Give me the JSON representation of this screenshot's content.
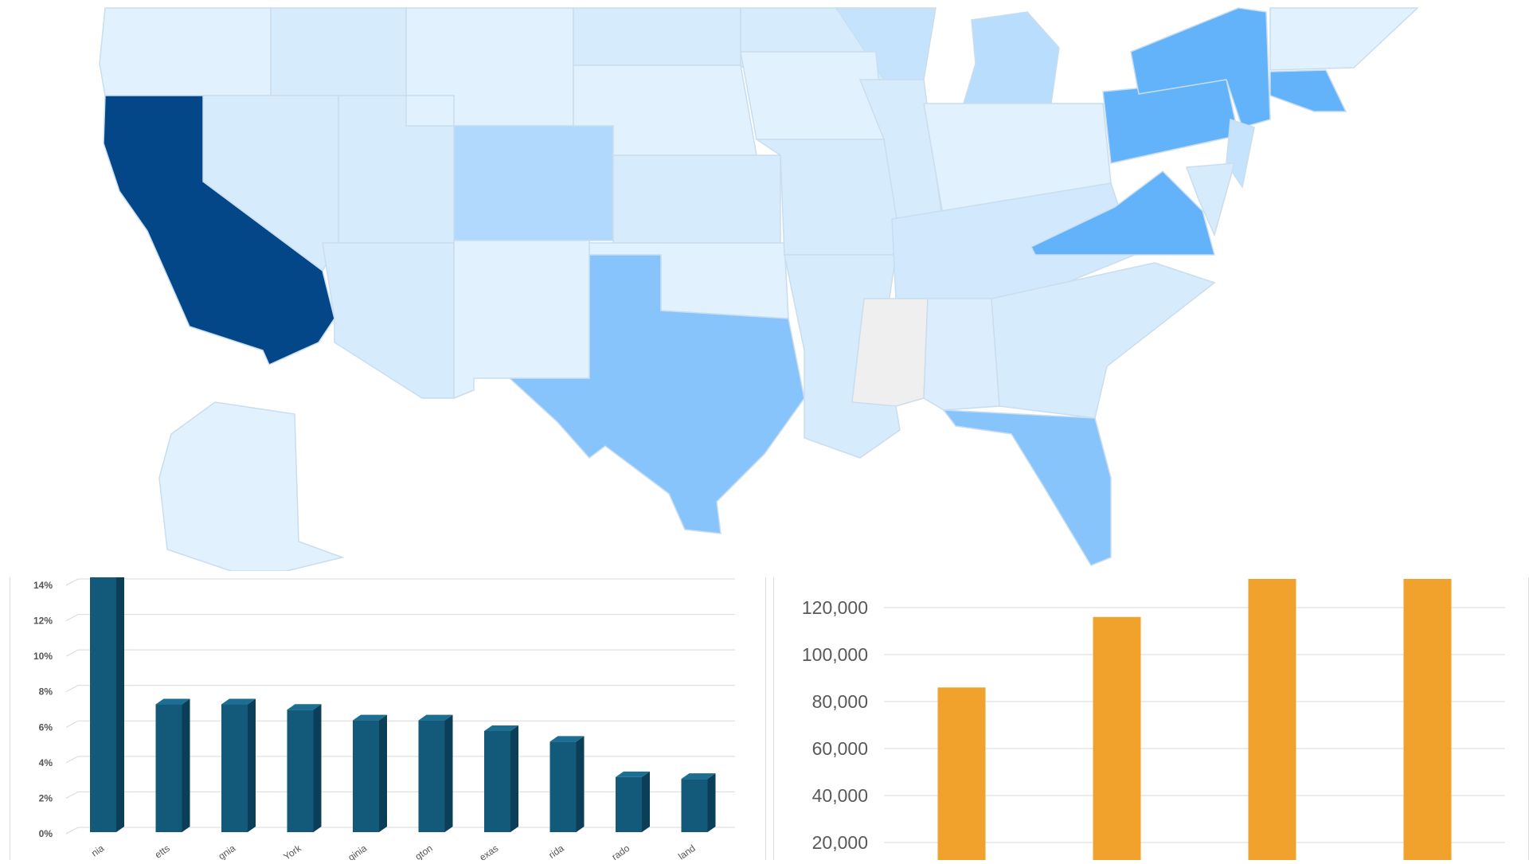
{
  "map": {
    "legend": "",
    "colors": {
      "background": "#ffffff",
      "state_fill_light": "#e1f1fe",
      "state_fill_lighter": "#d6ebfc",
      "state_fill_medium": "#b1d9fd",
      "state_fill_mid": "#88c4fc",
      "state_fill_strong": "#63b3fb",
      "state_fill_dark": "#044788",
      "no_data": "#efefef",
      "border": "#c9ddee"
    },
    "highlighted_states": [
      "California",
      "Texas",
      "New York",
      "Pennsylvania",
      "Virginia",
      "Florida",
      "Massachusetts",
      "Colorado"
    ]
  },
  "chart_data": [
    {
      "type": "bar",
      "style": "3d-column",
      "title": "",
      "xlabel": "",
      "ylabel": "",
      "ylim": [
        0,
        0.14
      ],
      "yticks": [
        "0%",
        "2%",
        "4%",
        "6%",
        "8%",
        "10%",
        "12%",
        "14%"
      ],
      "categories": [
        "nia",
        "etts",
        "gnia",
        "York",
        "ginia",
        "gton",
        "exas",
        "rida",
        "rado",
        "land"
      ],
      "values": [
        0.147,
        0.072,
        0.072,
        0.069,
        0.063,
        0.063,
        0.057,
        0.051,
        0.031,
        0.03
      ],
      "grid": true,
      "color": "#13597a",
      "color_side": "#0b3f57",
      "color_top": "#1d6e93"
    },
    {
      "type": "bar",
      "title": "",
      "xlabel": "",
      "ylabel": "",
      "ylim": [
        20000,
        130000
      ],
      "yticks": [
        "20,000",
        "40,000",
        "60,000",
        "80,000",
        "100,000",
        "120,000"
      ],
      "categories": [
        "",
        "",
        "",
        ""
      ],
      "values": [
        86000,
        116000,
        140000,
        140000
      ],
      "grid": true,
      "color": "#f0a22d"
    }
  ]
}
